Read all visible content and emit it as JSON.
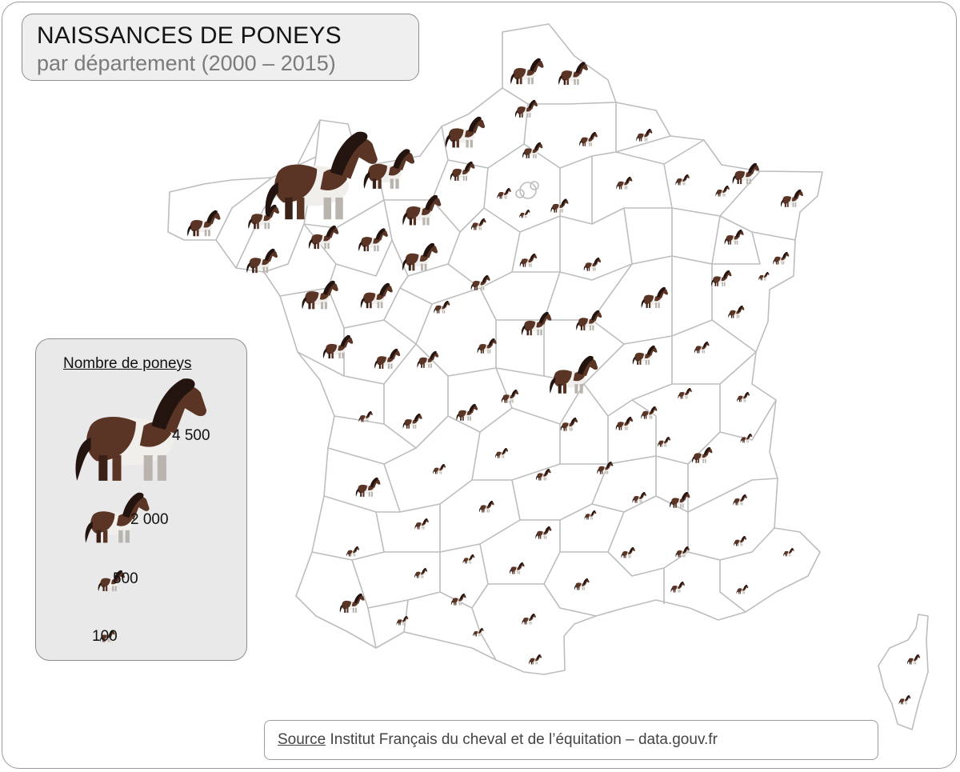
{
  "title": "NAISSANCES DE PONEYS",
  "subtitle": "par département (2000 – 2015)",
  "legend": {
    "title": "Nombre de poneys",
    "items": [
      {
        "value": 4500,
        "label": "4 500"
      },
      {
        "value": 2000,
        "label": "2 000"
      },
      {
        "value": 500,
        "label": "500"
      },
      {
        "value": 100,
        "label": "100"
      }
    ]
  },
  "source": {
    "label": "Source",
    "text": " Institut Français du cheval et de l’équitation – data.gouv.fr"
  },
  "colors": {
    "border": "#bdbdbd",
    "pony_brown": "#5a3424",
    "pony_dark": "#241410",
    "pony_white": "#f1efec",
    "pony_legs": "#b9b4ae"
  },
  "icon": "pony-icon"
}
